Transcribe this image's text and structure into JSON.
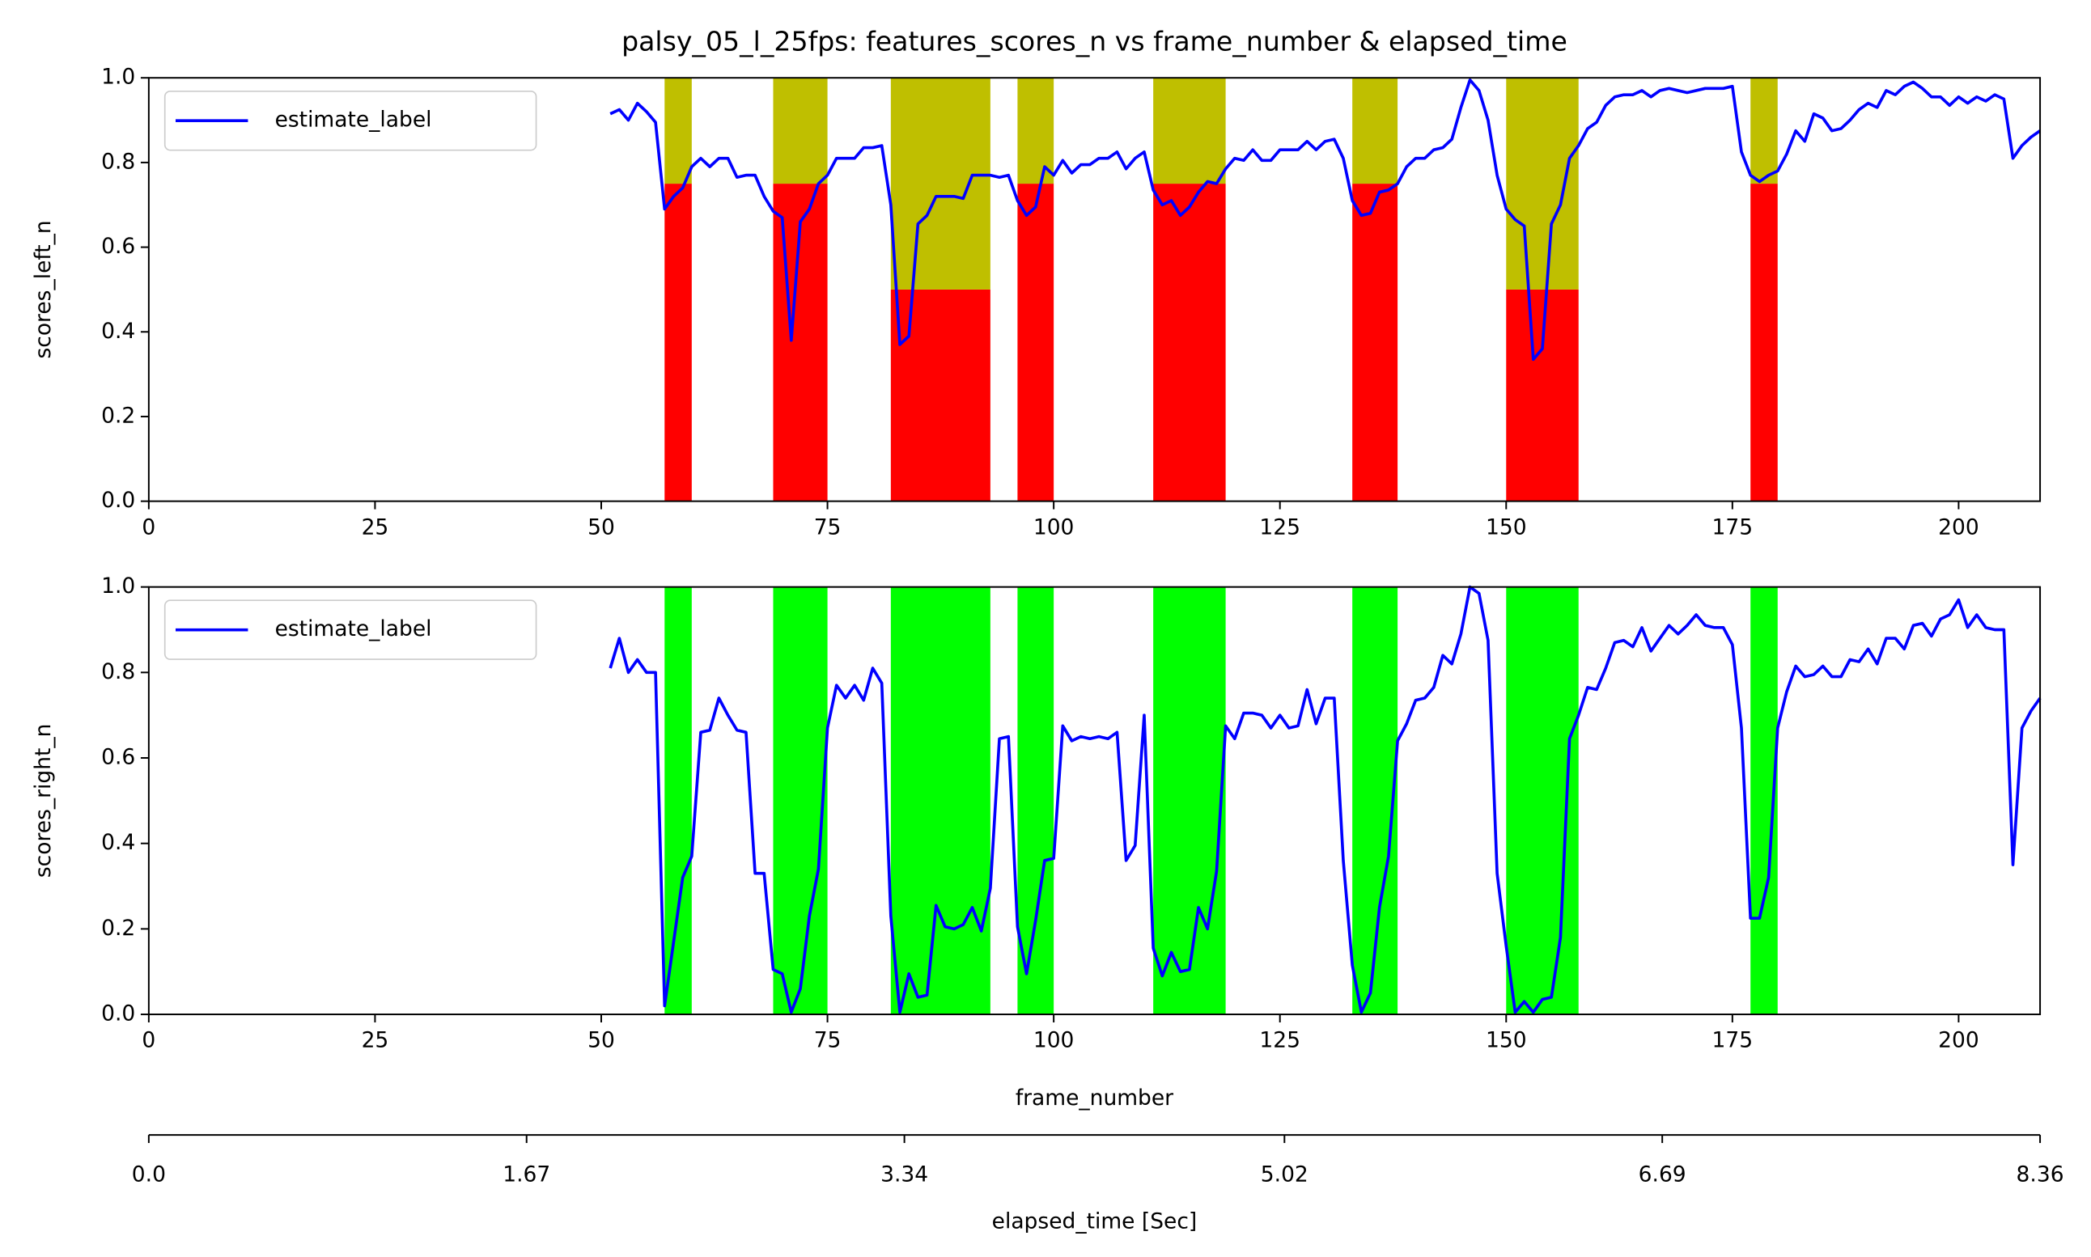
{
  "chart_data": [
    {
      "type": "line",
      "title": "palsy_05_l_25fps: features_scores_n vs frame_number & elapsed_time",
      "ylabel": "scores_left_n",
      "xlim": [
        0,
        209
      ],
      "xticks": [
        0,
        25,
        50,
        75,
        100,
        125,
        150,
        175,
        200
      ],
      "ylim": [
        0,
        1
      ],
      "yticks": [
        {
          "value": 0,
          "label": "0.0"
        },
        0.2,
        0.4,
        0.6,
        0.8,
        {
          "value": 1,
          "label": "1.0"
        }
      ],
      "legend": "upper left",
      "grid": false,
      "band_colors": [
        "#ff0000",
        "#bfbf00"
      ],
      "bands": [
        {
          "x0": 57,
          "x1": 60,
          "levels": [
            0.75,
            1
          ]
        },
        {
          "x0": 69,
          "x1": 75,
          "levels": [
            0.75,
            1
          ]
        },
        {
          "x0": 82,
          "x1": 93,
          "levels": [
            0.5,
            1
          ]
        },
        {
          "x0": 96,
          "x1": 100,
          "levels": [
            0.75,
            1
          ]
        },
        {
          "x0": 111,
          "x1": 119,
          "levels": [
            0.75,
            1
          ]
        },
        {
          "x0": 133,
          "x1": 138,
          "levels": [
            0.75,
            1
          ]
        },
        {
          "x0": 150,
          "x1": 158,
          "levels": [
            0.5,
            1
          ]
        },
        {
          "x0": 177,
          "x1": 180,
          "levels": [
            0.75,
            1
          ]
        }
      ],
      "x": [
        51,
        52,
        53,
        54,
        55,
        56,
        57,
        58,
        59,
        60,
        61,
        62,
        63,
        64,
        65,
        66,
        67,
        68,
        69,
        70,
        71,
        72,
        73,
        74,
        75,
        76,
        77,
        78,
        79,
        80,
        81,
        82,
        83,
        84,
        85,
        86,
        87,
        88,
        89,
        90,
        91,
        92,
        93,
        94,
        95,
        96,
        97,
        98,
        99,
        100,
        101,
        102,
        103,
        104,
        105,
        106,
        107,
        108,
        109,
        110,
        111,
        112,
        113,
        114,
        115,
        116,
        117,
        118,
        119,
        120,
        121,
        122,
        123,
        124,
        125,
        126,
        127,
        128,
        129,
        130,
        131,
        132,
        133,
        134,
        135,
        136,
        137,
        138,
        139,
        140,
        141,
        142,
        143,
        144,
        145,
        146,
        147,
        148,
        149,
        150,
        151,
        152,
        153,
        154,
        155,
        156,
        157,
        158,
        159,
        160,
        161,
        162,
        163,
        164,
        165,
        166,
        167,
        168,
        169,
        170,
        171,
        172,
        173,
        174,
        175,
        176,
        177,
        178,
        179,
        180,
        181,
        182,
        183,
        184,
        185,
        186,
        187,
        188,
        189,
        190,
        191,
        192,
        193,
        194,
        195,
        196,
        197,
        198,
        199,
        200,
        201,
        202,
        203,
        204,
        205,
        206,
        207,
        208,
        209
      ],
      "series": [
        {
          "name": "estimate_label",
          "color": "#0000ff",
          "values": [
            0.915,
            0.925,
            0.9,
            0.94,
            0.92,
            0.895,
            0.69,
            0.72,
            0.74,
            0.79,
            0.81,
            0.79,
            0.81,
            0.81,
            0.765,
            0.77,
            0.77,
            0.72,
            0.685,
            0.67,
            0.38,
            0.66,
            0.69,
            0.75,
            0.77,
            0.81,
            0.81,
            0.81,
            0.835,
            0.835,
            0.84,
            0.7,
            0.37,
            0.39,
            0.655,
            0.675,
            0.72,
            0.72,
            0.72,
            0.715,
            0.77,
            0.77,
            0.77,
            0.765,
            0.77,
            0.71,
            0.675,
            0.695,
            0.79,
            0.77,
            0.805,
            0.775,
            0.795,
            0.795,
            0.81,
            0.81,
            0.825,
            0.785,
            0.81,
            0.825,
            0.735,
            0.7,
            0.71,
            0.675,
            0.695,
            0.73,
            0.755,
            0.75,
            0.785,
            0.81,
            0.805,
            0.83,
            0.805,
            0.805,
            0.83,
            0.83,
            0.83,
            0.85,
            0.83,
            0.85,
            0.855,
            0.81,
            0.71,
            0.675,
            0.68,
            0.73,
            0.735,
            0.75,
            0.79,
            0.81,
            0.81,
            0.83,
            0.835,
            0.855,
            0.93,
            0.995,
            0.97,
            0.9,
            0.77,
            0.69,
            0.665,
            0.65,
            0.335,
            0.36,
            0.655,
            0.7,
            0.81,
            0.84,
            0.88,
            0.895,
            0.935,
            0.955,
            0.96,
            0.96,
            0.97,
            0.955,
            0.97,
            0.975,
            0.97,
            0.965,
            0.97,
            0.975,
            0.975,
            0.975,
            0.98,
            0.825,
            0.77,
            0.755,
            0.77,
            0.78,
            0.82,
            0.875,
            0.85,
            0.915,
            0.905,
            0.875,
            0.88,
            0.9,
            0.925,
            0.94,
            0.93,
            0.97,
            0.96,
            0.98,
            0.99,
            0.975,
            0.955,
            0.955,
            0.935,
            0.955,
            0.94,
            0.955,
            0.945,
            0.96,
            0.95,
            0.81,
            0.84,
            0.86,
            0.875
          ]
        }
      ]
    },
    {
      "type": "line",
      "ylabel": "scores_right_n",
      "xlabel": "frame_number",
      "xlim": [
        0,
        209
      ],
      "xticks": [
        0,
        25,
        50,
        75,
        100,
        125,
        150,
        175,
        200
      ],
      "ylim": [
        0,
        1
      ],
      "yticks": [
        {
          "value": 0,
          "label": "0.0"
        },
        0.2,
        0.4,
        0.6,
        0.8,
        {
          "value": 1,
          "label": "1.0"
        }
      ],
      "legend": "upper left",
      "grid": false,
      "band_colors": [
        "#00ff00"
      ],
      "bands": [
        {
          "x0": 57,
          "x1": 60,
          "levels": [
            1
          ]
        },
        {
          "x0": 69,
          "x1": 75,
          "levels": [
            1
          ]
        },
        {
          "x0": 82,
          "x1": 93,
          "levels": [
            1
          ]
        },
        {
          "x0": 96,
          "x1": 100,
          "levels": [
            1
          ]
        },
        {
          "x0": 111,
          "x1": 119,
          "levels": [
            1
          ]
        },
        {
          "x0": 133,
          "x1": 138,
          "levels": [
            1
          ]
        },
        {
          "x0": 150,
          "x1": 158,
          "levels": [
            1
          ]
        },
        {
          "x0": 177,
          "x1": 180,
          "levels": [
            1
          ]
        }
      ],
      "x": [
        51,
        52,
        53,
        54,
        55,
        56,
        57,
        58,
        59,
        60,
        61,
        62,
        63,
        64,
        65,
        66,
        67,
        68,
        69,
        70,
        71,
        72,
        73,
        74,
        75,
        76,
        77,
        78,
        79,
        80,
        81,
        82,
        83,
        84,
        85,
        86,
        87,
        88,
        89,
        90,
        91,
        92,
        93,
        94,
        95,
        96,
        97,
        98,
        99,
        100,
        101,
        102,
        103,
        104,
        105,
        106,
        107,
        108,
        109,
        110,
        111,
        112,
        113,
        114,
        115,
        116,
        117,
        118,
        119,
        120,
        121,
        122,
        123,
        124,
        125,
        126,
        127,
        128,
        129,
        130,
        131,
        132,
        133,
        134,
        135,
        136,
        137,
        138,
        139,
        140,
        141,
        142,
        143,
        144,
        145,
        146,
        147,
        148,
        149,
        150,
        151,
        152,
        153,
        154,
        155,
        156,
        157,
        158,
        159,
        160,
        161,
        162,
        163,
        164,
        165,
        166,
        167,
        168,
        169,
        170,
        171,
        172,
        173,
        174,
        175,
        176,
        177,
        178,
        179,
        180,
        181,
        182,
        183,
        184,
        185,
        186,
        187,
        188,
        189,
        190,
        191,
        192,
        193,
        194,
        195,
        196,
        197,
        198,
        199,
        200,
        201,
        202,
        203,
        204,
        205,
        206,
        207,
        208,
        209
      ],
      "series": [
        {
          "name": "estimate_label",
          "color": "#0000ff",
          "values": [
            0.81,
            0.88,
            0.8,
            0.83,
            0.8,
            0.8,
            0.02,
            0.17,
            0.32,
            0.37,
            0.66,
            0.665,
            0.74,
            0.7,
            0.665,
            0.66,
            0.33,
            0.33,
            0.105,
            0.095,
            0.005,
            0.06,
            0.23,
            0.34,
            0.67,
            0.77,
            0.74,
            0.77,
            0.735,
            0.81,
            0.775,
            0.23,
            0.005,
            0.095,
            0.04,
            0.045,
            0.255,
            0.205,
            0.2,
            0.21,
            0.25,
            0.195,
            0.295,
            0.645,
            0.65,
            0.205,
            0.095,
            0.22,
            0.36,
            0.365,
            0.675,
            0.64,
            0.65,
            0.645,
            0.65,
            0.645,
            0.66,
            0.36,
            0.395,
            0.7,
            0.155,
            0.09,
            0.145,
            0.1,
            0.105,
            0.25,
            0.2,
            0.335,
            0.675,
            0.645,
            0.705,
            0.705,
            0.7,
            0.67,
            0.7,
            0.67,
            0.675,
            0.76,
            0.68,
            0.74,
            0.74,
            0.36,
            0.115,
            0.005,
            0.05,
            0.25,
            0.37,
            0.64,
            0.68,
            0.735,
            0.74,
            0.765,
            0.84,
            0.82,
            0.89,
            1.0,
            0.985,
            0.875,
            0.33,
            0.16,
            0.005,
            0.03,
            0.005,
            0.035,
            0.04,
            0.18,
            0.645,
            0.7,
            0.765,
            0.76,
            0.81,
            0.87,
            0.875,
            0.86,
            0.905,
            0.85,
            0.88,
            0.91,
            0.89,
            0.91,
            0.935,
            0.91,
            0.905,
            0.905,
            0.865,
            0.67,
            0.225,
            0.225,
            0.32,
            0.67,
            0.755,
            0.815,
            0.79,
            0.795,
            0.815,
            0.79,
            0.79,
            0.83,
            0.825,
            0.855,
            0.82,
            0.88,
            0.88,
            0.855,
            0.91,
            0.915,
            0.885,
            0.925,
            0.935,
            0.97,
            0.905,
            0.935,
            0.905,
            0.9,
            0.9,
            0.35,
            0.67,
            0.71,
            0.74
          ]
        }
      ],
      "secondary_xaxis": {
        "label": "elapsed_time [Sec]",
        "xlim": [
          0,
          8.36
        ],
        "xticks": [
          {
            "value": 0,
            "label": "0.0"
          },
          1.67,
          3.34,
          5.02,
          6.69,
          8.36
        ]
      }
    }
  ]
}
